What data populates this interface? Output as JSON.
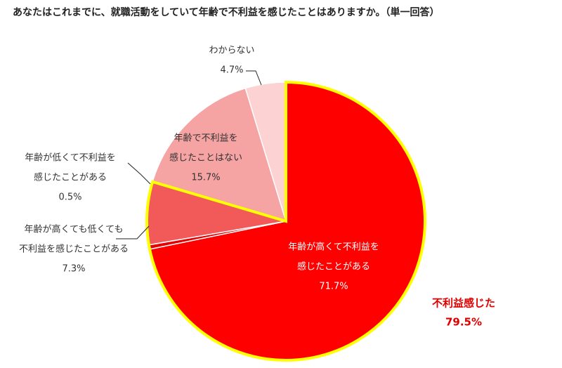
{
  "chart_data": {
    "type": "pie",
    "title": "あなたはこれまでに、就職活動をしていて年齢で不利益を感じたことはありますか。（単一回答）",
    "categories": [
      [
        "年齢が高くて不利益を",
        "感じたことがある"
      ],
      [
        "年齢が低くて不利益を",
        "感じたことがある"
      ],
      [
        "年齢が高くても低くても",
        "不利益を感じたことがある"
      ],
      [
        "年齢で不利益を",
        "感じたことはない"
      ],
      [
        "わからない"
      ]
    ],
    "values": [
      71.7,
      0.5,
      7.3,
      15.7,
      4.7
    ],
    "value_labels": [
      "71.7%",
      "0.5%",
      "7.3%",
      "15.7%",
      "4.7%"
    ],
    "colors": [
      "#ff0000",
      "#e80000",
      "#f25a5a",
      "#f5a3a3",
      "#fcd2d2"
    ],
    "group": {
      "label": "不利益感じた",
      "value": 79.5,
      "value_label": "79.5%",
      "color": "#ffff00"
    }
  }
}
